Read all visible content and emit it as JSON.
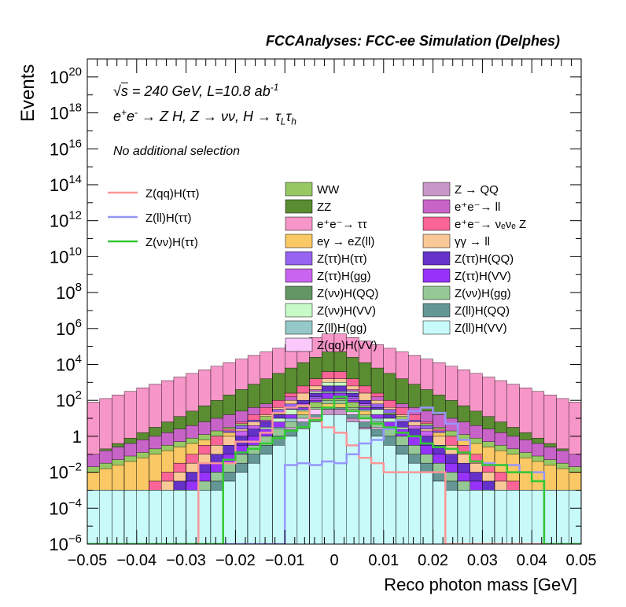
{
  "chart_data": {
    "type": "histogram",
    "title": "FCCAnalyses: FCC-ee Simulation (Delphes)",
    "xlabel": "Reco photon mass [GeV]",
    "ylabel": "Events",
    "y_scale": "log",
    "xlim": [
      -0.05,
      0.05
    ],
    "ylim_exponent": [
      -6,
      21
    ],
    "bin_width": 0.0025,
    "x_ticks": [
      "−0.05",
      "−0.04",
      "−0.03",
      "−0.02",
      "−0.01",
      "0",
      "0.01",
      "0.02",
      "0.03",
      "0.04",
      "0.05"
    ],
    "y_ticks": [
      {
        "base": "10",
        "exp": "20",
        "value_exp": 20
      },
      {
        "base": "10",
        "exp": "18",
        "value_exp": 18
      },
      {
        "base": "10",
        "exp": "16",
        "value_exp": 16
      },
      {
        "base": "10",
        "exp": "14",
        "value_exp": 14
      },
      {
        "base": "10",
        "exp": "12",
        "value_exp": 12
      },
      {
        "base": "10",
        "exp": "10",
        "value_exp": 10
      },
      {
        "base": "10",
        "exp": "8",
        "value_exp": 8
      },
      {
        "base": "10",
        "exp": "6",
        "value_exp": 6
      },
      {
        "base": "10",
        "exp": "4",
        "value_exp": 4
      },
      {
        "base": "10",
        "exp": "2",
        "value_exp": 2
      },
      {
        "base": "1",
        "exp": "",
        "value_exp": 0
      },
      {
        "base": "10",
        "exp": "−2",
        "value_exp": -2
      },
      {
        "base": "10",
        "exp": "−4",
        "value_exp": -4
      },
      {
        "base": "10",
        "exp": "−6",
        "value_exp": -6
      }
    ],
    "annotations": {
      "energy_prefix": "s",
      "energy_rest": " = 240 GeV, L=10.8 ab",
      "energy_sup": "-1",
      "process_a": "e",
      "process_a_sup": "+",
      "process_b": "e",
      "process_b_sup": "-",
      "process_rest": " → Z H, Z  → νν, H  → τ",
      "process_sub1": "L",
      "process_tau2": "τ",
      "process_sub2": "h",
      "selection": "No additional selection"
    },
    "stacked_series": [
      {
        "name": "WW",
        "color": "#96c864",
        "top_log10": [
          -1.7,
          -1.5,
          -1.3,
          -1.1,
          -0.9,
          -0.7,
          -0.5,
          -0.3,
          -0.1,
          0.1,
          0.3,
          0.5,
          0.7,
          0.9,
          1.1,
          1.3,
          1.5,
          1.7,
          1.9,
          2.1
        ]
      },
      {
        "name": "ZZ",
        "color": "#5a8c32",
        "top_log10": [
          -1.0,
          -0.7,
          -0.4,
          -0.1,
          0.2,
          0.5,
          0.8,
          1.1,
          1.4,
          1.7,
          2.0,
          2.3,
          2.6,
          2.9,
          3.2,
          3.5,
          3.8,
          4.1,
          4.4,
          4.7
        ]
      },
      {
        "name": "e⁺e⁻→ ττ",
        "color": "#f796c8",
        "top_log10": [
          1.9,
          2.1,
          2.3,
          2.5,
          2.7,
          2.9,
          3.1,
          3.3,
          3.5,
          3.7,
          3.9,
          4.1,
          4.3,
          4.5,
          4.7,
          4.9,
          5.1,
          5.3,
          5.5,
          5.7
        ]
      },
      {
        "name": "eγ → eZ(ll)",
        "color": "#fac864",
        "top_log10": [
          -2.0,
          -1.8,
          -1.6,
          -1.4,
          -1.2,
          -1.0,
          -0.8,
          -0.6,
          -0.4,
          -0.2,
          0.0,
          0.2,
          0.4,
          0.6,
          0.8,
          1.0,
          1.2,
          1.4,
          1.6,
          1.8
        ]
      },
      {
        "name": "Z(ττ)H(ττ)",
        "color": "#9664f0",
        "top_log10": [
          -3,
          -3,
          -3,
          -3,
          -3,
          -2.5,
          -2,
          -1.5,
          -1,
          -0.5,
          0,
          0.3,
          0.6,
          0.9,
          1.2,
          1.5,
          1.8,
          2.0,
          2.2,
          2.4
        ]
      },
      {
        "name": "Z(ττ)H(gg)",
        "color": "#c864f0",
        "top_log10": [
          -3,
          -3,
          -3,
          -3,
          -3,
          -3,
          -2.5,
          -2,
          -1.5,
          -1,
          -0.5,
          0,
          0.3,
          0.6,
          0.9,
          1.2,
          1.5,
          1.8,
          2.1,
          2.4
        ]
      },
      {
        "name": "Z(νν)H(QQ)",
        "color": "#649664",
        "top_log10": [
          -3,
          -3,
          -3,
          -3,
          -3,
          -3,
          -3,
          -2.5,
          -2,
          -1.5,
          -1,
          -0.5,
          0,
          0.4,
          0.8,
          1.2,
          1.6,
          2.0,
          2.4,
          2.8
        ]
      },
      {
        "name": "Z(νν)H(VV)",
        "color": "#c8fac8",
        "top_log10": [
          -3,
          -3,
          -3,
          -3,
          -3,
          -3,
          -3,
          -3,
          -2.5,
          -2,
          -1.5,
          -1,
          -0.5,
          0,
          0.5,
          1,
          1.5,
          2,
          2.5,
          3
        ]
      },
      {
        "name": "Z(ll)H(gg)",
        "color": "#96c8c8",
        "top_log10": [
          -3,
          -3,
          -3,
          -3,
          -3,
          -3,
          -3,
          -3,
          -3,
          -2.5,
          -2,
          -1.5,
          -1,
          -0.5,
          0,
          0.5,
          1,
          1.5,
          2,
          2.5
        ]
      },
      {
        "name": "Z(qq)H(VV)",
        "color": "#fac8fa",
        "top_log10": [
          -3,
          -3,
          -3,
          -3,
          -3,
          -3,
          -3,
          -3,
          -3,
          -3,
          -2.5,
          -2,
          -1.5,
          -1,
          -0.5,
          0,
          0.5,
          1,
          1.5,
          2
        ]
      },
      {
        "name": "Z → QQ",
        "color": "#c896c8",
        "top_log10": [
          -3,
          -3,
          -3,
          -3,
          -3,
          -3,
          -3,
          -3,
          -3,
          -3,
          -3,
          -2.5,
          -2,
          -1.5,
          -1,
          -0.5,
          0,
          0.5,
          1,
          1.5
        ]
      },
      {
        "name": "e⁺e⁻→ ll",
        "color": "#c864c8",
        "top_log10": [
          -1,
          -0.8,
          -0.6,
          -0.4,
          -0.2,
          0,
          0.2,
          0.4,
          0.6,
          0.8,
          1.0,
          1.2,
          1.4,
          1.6,
          1.8,
          2.0,
          2.2,
          2.4,
          2.6,
          2.8
        ]
      },
      {
        "name": "e⁺e⁻→ νₑνₑ Z",
        "color": "#fa6496",
        "top_log10": [
          -3,
          -3,
          -3,
          -3,
          -3,
          -2.5,
          -2,
          -1.5,
          -1,
          -0.5,
          0,
          0.4,
          0.8,
          1.2,
          1.6,
          2,
          2.4,
          2.8,
          3.2,
          3.6
        ]
      },
      {
        "name": "γγ → ll",
        "color": "#fac896",
        "top_log10": [
          -3,
          -3,
          -3,
          -3,
          -3,
          -3,
          -2.5,
          -2,
          -1.5,
          -1,
          -0.5,
          0,
          0.4,
          0.8,
          1.2,
          1.6,
          2,
          2.4,
          2.8,
          3.2
        ]
      },
      {
        "name": "Z(ττ)H(QQ)",
        "color": "#6432c8",
        "top_log10": [
          -3,
          -3,
          -3,
          -3,
          -3,
          -3,
          -3,
          -2.5,
          -2,
          -1.5,
          -1,
          -0.5,
          0,
          0.4,
          0.8,
          1.2,
          1.6,
          2,
          2.4,
          2.8
        ]
      },
      {
        "name": "Z(ττ)H(VV)",
        "color": "#9632fa",
        "top_log10": [
          -3,
          -3,
          -3,
          -3,
          -3,
          -3,
          -3,
          -3,
          -2.5,
          -2,
          -1.5,
          -1,
          -0.5,
          0,
          0.4,
          0.8,
          1.2,
          1.6,
          2,
          2.4
        ]
      },
      {
        "name": "Z(νν)H(gg)",
        "color": "#96c896",
        "top_log10": [
          -3,
          -3,
          -3,
          -3,
          -3,
          -3,
          -3,
          -3,
          -3,
          -2.5,
          -2,
          -1.5,
          -1,
          -0.5,
          0,
          0.4,
          0.8,
          1.2,
          1.6,
          2
        ]
      },
      {
        "name": "Z(ll)H(QQ)",
        "color": "#649696",
        "top_log10": [
          -3,
          -3,
          -3,
          -3,
          -3,
          -3,
          -3,
          -3,
          -3,
          -3,
          -2.5,
          -2,
          -1.5,
          -1,
          -0.5,
          0,
          0.4,
          0.8,
          1.2,
          1.6
        ]
      },
      {
        "name": "Z(ll)H(VV)",
        "color": "#c8fafa",
        "top_log10": [
          -3,
          -3,
          -3,
          -3,
          -3,
          -3,
          -3,
          -3,
          -3,
          -3,
          -3,
          -2.5,
          -2,
          -1.5,
          -1,
          -0.5,
          0,
          0.4,
          0.8,
          1.2
        ]
      }
    ],
    "legend_columns": [
      [
        "WW",
        "ZZ",
        "e⁺e⁻→ ττ",
        "eγ → eZ(ll)",
        "Z(ττ)H(ττ)",
        "Z(ττ)H(gg)",
        "Z(νν)H(QQ)",
        "Z(νν)H(VV)",
        "Z(ll)H(gg)",
        "Z(qq)H(VV)"
      ],
      [
        "Z → QQ",
        "e⁺e⁻→ ll",
        "e⁺e⁻→ νₑνₑ Z",
        "γγ → ll",
        "Z(ττ)H(QQ)",
        "Z(ττ)H(VV)",
        "Z(νν)H(gg)",
        "Z(ll)H(QQ)",
        "Z(ll)H(VV)"
      ]
    ],
    "signal_series": [
      {
        "name": "Z(qq)H(ττ)",
        "color": "#fa9696",
        "log10": [
          -6,
          -6,
          -6,
          -6,
          -6,
          -6,
          -6,
          -6,
          -6,
          -1.5,
          -1.5,
          -1.5,
          -0.3,
          -0.3,
          0.2,
          1.3,
          1.6,
          1.7,
          1.0,
          0.5,
          0.2,
          -0.5,
          -1.2,
          -1.5,
          -2,
          -2,
          -2,
          -2,
          -2,
          -6,
          -6,
          -6,
          -6,
          -6,
          -6,
          -6,
          -6,
          -6,
          -6,
          -6
        ]
      },
      {
        "name": "Z(ll)H(ττ)",
        "color": "#9696fa",
        "log10": [
          -6,
          -6,
          -6,
          -6,
          -6,
          -6,
          -6,
          -6,
          -6,
          -6,
          -6,
          -6,
          -6,
          -6,
          -6,
          -6,
          -1.6,
          -1.5,
          -1.6,
          -1.4,
          -1.5,
          -1.0,
          -0.4,
          -0.2,
          0.4,
          0.9,
          1.4,
          1.6,
          1.3,
          0.7,
          -0.2,
          -1.4,
          -1.5,
          -1.6,
          -1.6,
          -2.0,
          -2.0,
          -6,
          -6,
          -6
        ]
      },
      {
        "name": "Z(νν)H(ττ)",
        "color": "#32c832",
        "log10": [
          -6,
          -6,
          -6,
          -6,
          -6,
          -6,
          -6,
          -6,
          -6,
          -6,
          -6,
          -1.3,
          -0.9,
          -0.7,
          -0.4,
          -0.1,
          0.3,
          0.5,
          0.9,
          1.6,
          2.2,
          1.4,
          1.0,
          0.7,
          0.5,
          0.2,
          0.0,
          -0.4,
          -0.6,
          -0.7,
          -0.9,
          -1.4,
          -1.6,
          -1.6,
          -2.0,
          -2.0,
          -2.5,
          -6,
          -6,
          -6
        ]
      }
    ]
  }
}
